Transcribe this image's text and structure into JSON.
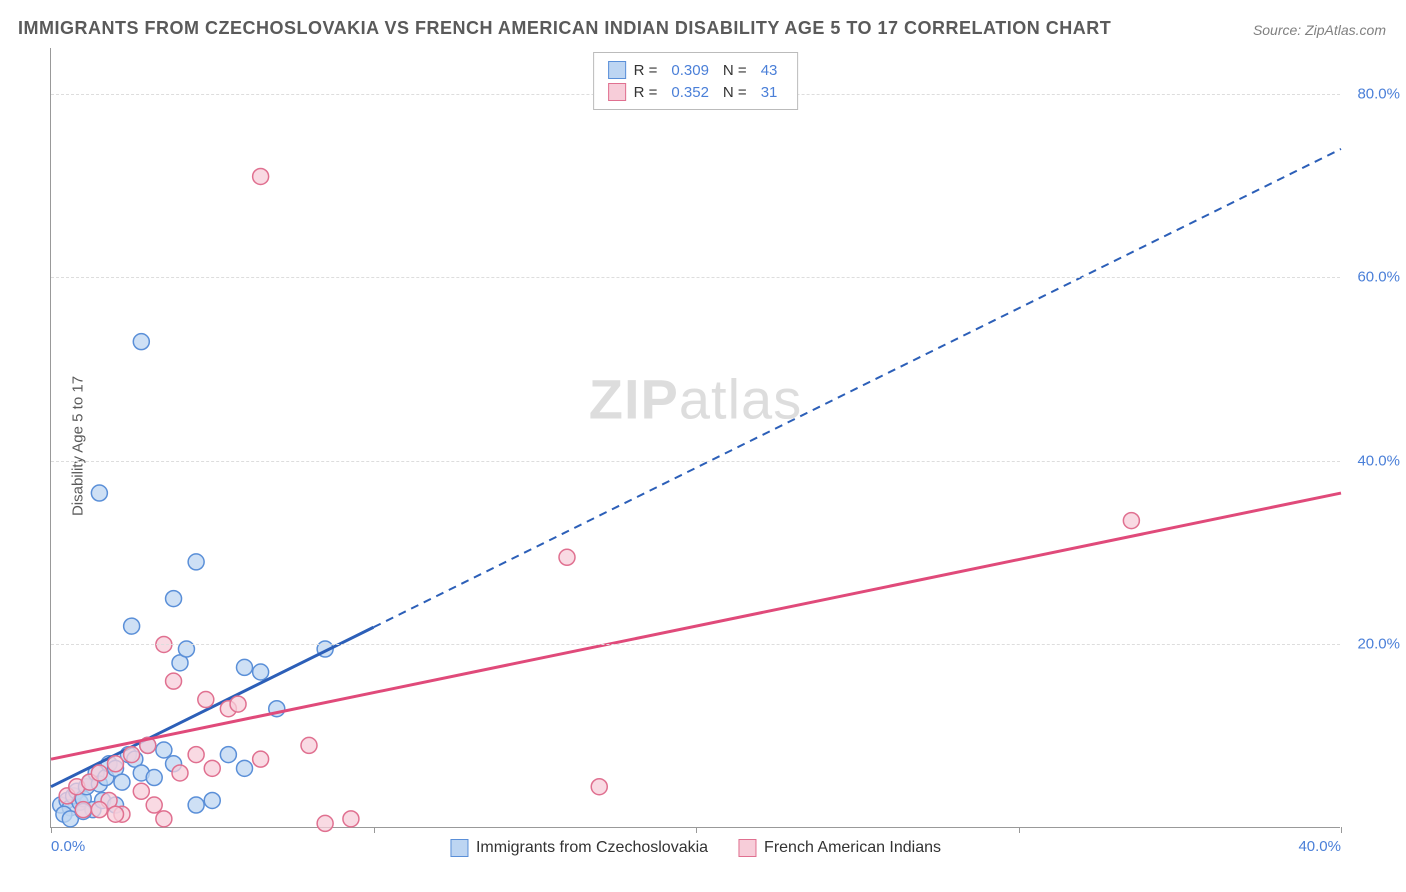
{
  "title": "IMMIGRANTS FROM CZECHOSLOVAKIA VS FRENCH AMERICAN INDIAN DISABILITY AGE 5 TO 17 CORRELATION CHART",
  "source": "Source: ZipAtlas.com",
  "y_axis_label": "Disability Age 5 to 17",
  "watermark": "ZIPatlas",
  "chart": {
    "type": "scatter",
    "xlim": [
      0,
      40
    ],
    "ylim": [
      0,
      85
    ],
    "x_ticks": [
      0,
      10,
      20,
      30,
      40
    ],
    "x_tick_labels": [
      "0.0%",
      "",
      "",
      "",
      "40.0%"
    ],
    "y_ticks": [
      20,
      40,
      60,
      80
    ],
    "y_tick_labels": [
      "20.0%",
      "40.0%",
      "60.0%",
      "80.0%"
    ],
    "grid_color": "#dddddd",
    "axis_color": "#999999",
    "background_color": "#ffffff",
    "series": [
      {
        "name": "Immigrants from Czechoslovakia",
        "marker_color_fill": "#bdd5f2",
        "marker_color_stroke": "#5a8fd8",
        "marker_radius": 8,
        "marker_opacity": 0.75,
        "trend_color": "#2c5fb8",
        "trend_solid_end_x": 10,
        "trend_start": [
          0,
          4.5
        ],
        "trend_end": [
          40,
          74
        ],
        "R": "0.309",
        "N": "43",
        "points": [
          [
            0.3,
            2.5
          ],
          [
            0.5,
            3.0
          ],
          [
            0.6,
            2.2
          ],
          [
            0.7,
            3.5
          ],
          [
            0.8,
            4.0
          ],
          [
            0.9,
            2.8
          ],
          [
            1.0,
            3.2
          ],
          [
            1.1,
            4.5
          ],
          [
            1.2,
            5.0
          ],
          [
            1.3,
            2.0
          ],
          [
            1.4,
            6.0
          ],
          [
            1.5,
            4.8
          ],
          [
            1.6,
            3.0
          ],
          [
            1.7,
            5.5
          ],
          [
            1.8,
            7.0
          ],
          [
            2.0,
            6.5
          ],
          [
            2.2,
            5.0
          ],
          [
            2.4,
            8.0
          ],
          [
            2.6,
            7.5
          ],
          [
            2.8,
            6.0
          ],
          [
            3.0,
            9.0
          ],
          [
            3.2,
            5.5
          ],
          [
            3.5,
            8.5
          ],
          [
            3.8,
            7.0
          ],
          [
            4.0,
            18.0
          ],
          [
            4.2,
            19.5
          ],
          [
            4.5,
            29.0
          ],
          [
            2.5,
            22.0
          ],
          [
            3.8,
            25.0
          ],
          [
            1.5,
            36.5
          ],
          [
            2.8,
            53.0
          ],
          [
            6.0,
            17.5
          ],
          [
            6.5,
            17.0
          ],
          [
            7.0,
            13.0
          ],
          [
            6.0,
            6.5
          ],
          [
            5.5,
            8.0
          ],
          [
            8.5,
            19.5
          ],
          [
            5.0,
            3.0
          ],
          [
            4.5,
            2.5
          ],
          [
            0.4,
            1.5
          ],
          [
            0.6,
            1.0
          ],
          [
            1.0,
            1.8
          ],
          [
            2.0,
            2.5
          ]
        ]
      },
      {
        "name": "French American Indians",
        "marker_color_fill": "#f7cdd9",
        "marker_color_stroke": "#e07090",
        "marker_radius": 8,
        "marker_opacity": 0.75,
        "trend_color": "#e04a7a",
        "trend_solid_end_x": 40,
        "trend_start": [
          0,
          7.5
        ],
        "trend_end": [
          40,
          36.5
        ],
        "R": "0.352",
        "N": "31",
        "points": [
          [
            0.5,
            3.5
          ],
          [
            0.8,
            4.5
          ],
          [
            1.0,
            2.0
          ],
          [
            1.2,
            5.0
          ],
          [
            1.5,
            6.0
          ],
          [
            1.8,
            3.0
          ],
          [
            2.0,
            7.0
          ],
          [
            2.2,
            1.5
          ],
          [
            2.5,
            8.0
          ],
          [
            2.8,
            4.0
          ],
          [
            3.0,
            9.0
          ],
          [
            3.2,
            2.5
          ],
          [
            3.5,
            20.0
          ],
          [
            3.8,
            16.0
          ],
          [
            4.0,
            6.0
          ],
          [
            4.5,
            8.0
          ],
          [
            4.8,
            14.0
          ],
          [
            5.0,
            6.5
          ],
          [
            5.5,
            13.0
          ],
          [
            5.8,
            13.5
          ],
          [
            6.5,
            7.5
          ],
          [
            8.0,
            9.0
          ],
          [
            8.5,
            0.5
          ],
          [
            9.3,
            1.0
          ],
          [
            6.5,
            71.0
          ],
          [
            16.0,
            29.5
          ],
          [
            17.0,
            4.5
          ],
          [
            33.5,
            33.5
          ],
          [
            3.5,
            1.0
          ],
          [
            2.0,
            1.5
          ],
          [
            1.5,
            2.0
          ]
        ]
      }
    ],
    "legend_top_labels": {
      "r_label": "R =",
      "n_label": "N ="
    },
    "legend_bottom": [
      {
        "label": "Immigrants from Czechoslovakia",
        "fill": "#bdd5f2",
        "stroke": "#5a8fd8"
      },
      {
        "label": "French American Indians",
        "fill": "#f7cdd9",
        "stroke": "#e07090"
      }
    ]
  }
}
